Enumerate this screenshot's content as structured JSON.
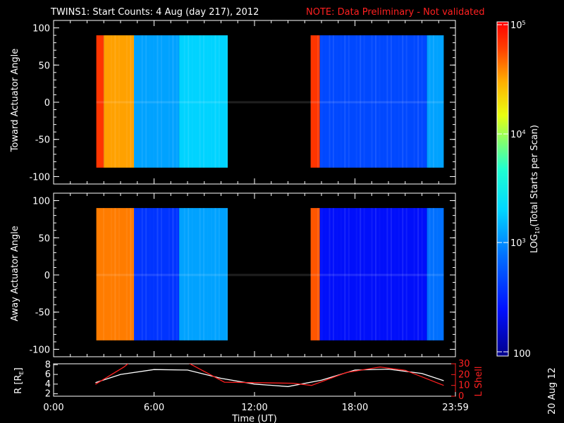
{
  "header": {
    "title": "TWINS1: Start Counts:  4 Aug (day 217), 2012",
    "note": "NOTE: Data Preliminary - Not validated"
  },
  "colors": {
    "background": "#000000",
    "axes": "#ffffff",
    "note": "#ff2020",
    "lshell": "#ff2020",
    "r_line": "#ffffff"
  },
  "panels": {
    "top": {
      "ylabel": "Toward Actuator Angle"
    },
    "bottom": {
      "ylabel": "Away Actuator Angle"
    },
    "orbit": {
      "ylabel_left_base": "R [R",
      "ylabel_left_sub": "E",
      "ylabel_left_end": "]",
      "ylabel_right": "L Shell",
      "left_ticks": [
        "2",
        "4",
        "6",
        "8"
      ],
      "right_ticks": [
        "0",
        "10",
        "20",
        "30"
      ]
    }
  },
  "xaxis": {
    "label": "Time (UT)",
    "ticks": [
      "0:00",
      "6:00",
      "12:00",
      "18:00",
      "23:59"
    ]
  },
  "colorbar": {
    "label": "LOG10(Total Starts per Scan)",
    "label_pre": "LOG",
    "label_sub": "10",
    "label_post": "(Total Starts per Scan)",
    "tick_100": "100",
    "tick_1e3_base": "10",
    "tick_1e3_exp": "3",
    "tick_1e4_base": "10",
    "tick_1e4_exp": "4",
    "tick_1e5_base": "10",
    "tick_1e5_exp": "5"
  },
  "side_date": "20 Aug 12",
  "chart_data": [
    {
      "type": "heatmap",
      "panel": "top",
      "ylabel": "Toward Actuator Angle",
      "xlim_hours": [
        0,
        24
      ],
      "ylim": [
        -110,
        110
      ],
      "yticks": [
        -100,
        -50,
        0,
        50,
        100
      ],
      "xticks": [
        "0:00",
        "6:00",
        "12:00",
        "18:00",
        "23:59"
      ],
      "data_intervals_hours": [
        [
          2.55,
          10.4
        ],
        [
          15.35,
          23.3
        ]
      ],
      "angle_range": [
        -88,
        90
      ],
      "log10_counts_approx": [
        {
          "from": 2.55,
          "to": 3.0,
          "value": 4.8
        },
        {
          "from": 3.0,
          "to": 4.8,
          "value": 4.5
        },
        {
          "from": 4.8,
          "to": 7.5,
          "value": 3.1
        },
        {
          "from": 7.5,
          "to": 10.4,
          "value": 3.3
        },
        {
          "from": 15.35,
          "to": 15.9,
          "value": 4.8
        },
        {
          "from": 15.9,
          "to": 22.3,
          "value": 2.7
        },
        {
          "from": 22.3,
          "to": 23.3,
          "value": 3.1
        }
      ]
    },
    {
      "type": "heatmap",
      "panel": "bottom",
      "ylabel": "Away Actuator Angle",
      "xlim_hours": [
        0,
        24
      ],
      "ylim": [
        -110,
        110
      ],
      "yticks": [
        -100,
        -50,
        0,
        50,
        100
      ],
      "xticks": [
        "0:00",
        "6:00",
        "12:00",
        "18:00",
        "23:59"
      ],
      "data_intervals_hours": [
        [
          2.55,
          10.4
        ],
        [
          15.35,
          23.3
        ]
      ],
      "angle_range": [
        -88,
        90
      ],
      "log10_counts_approx": [
        {
          "from": 2.55,
          "to": 4.8,
          "value": 4.6
        },
        {
          "from": 4.8,
          "to": 7.5,
          "value": 2.6
        },
        {
          "from": 7.5,
          "to": 10.4,
          "value": 3.1
        },
        {
          "from": 15.35,
          "to": 15.9,
          "value": 4.7
        },
        {
          "from": 15.9,
          "to": 22.3,
          "value": 2.4
        },
        {
          "from": 22.3,
          "to": 23.3,
          "value": 2.9
        }
      ]
    },
    {
      "type": "line",
      "panel": "orbit",
      "xlim_hours": [
        0,
        24
      ],
      "left_axis": {
        "label": "R [RE]",
        "ylim": [
          1.5,
          8.2
        ],
        "ticks": [
          2,
          4,
          6,
          8
        ]
      },
      "right_axis": {
        "label": "L Shell",
        "ylim": [
          0,
          30
        ],
        "ticks": [
          0,
          10,
          20,
          30
        ]
      },
      "series": [
        {
          "name": "R [RE]",
          "axis": "left",
          "color": "#ffffff",
          "x": [
            2.5,
            4,
            6,
            8,
            10,
            12,
            14,
            16,
            18,
            20,
            22,
            23.3
          ],
          "y": [
            4.3,
            6.0,
            7.0,
            6.9,
            5.2,
            4.0,
            3.5,
            4.8,
            6.9,
            7.1,
            6.2,
            4.7
          ]
        },
        {
          "name": "L Shell",
          "axis": "right",
          "color": "#ff2020",
          "x": [
            2.5,
            4.2,
            4.6,
            7.9,
            8.5,
            10.2,
            14.3,
            15.4,
            17.5,
            19.5,
            21,
            23.3
          ],
          "y": [
            11,
            27,
            32,
            32,
            27,
            13,
            12,
            10,
            22,
            27,
            24,
            10
          ]
        }
      ]
    }
  ]
}
